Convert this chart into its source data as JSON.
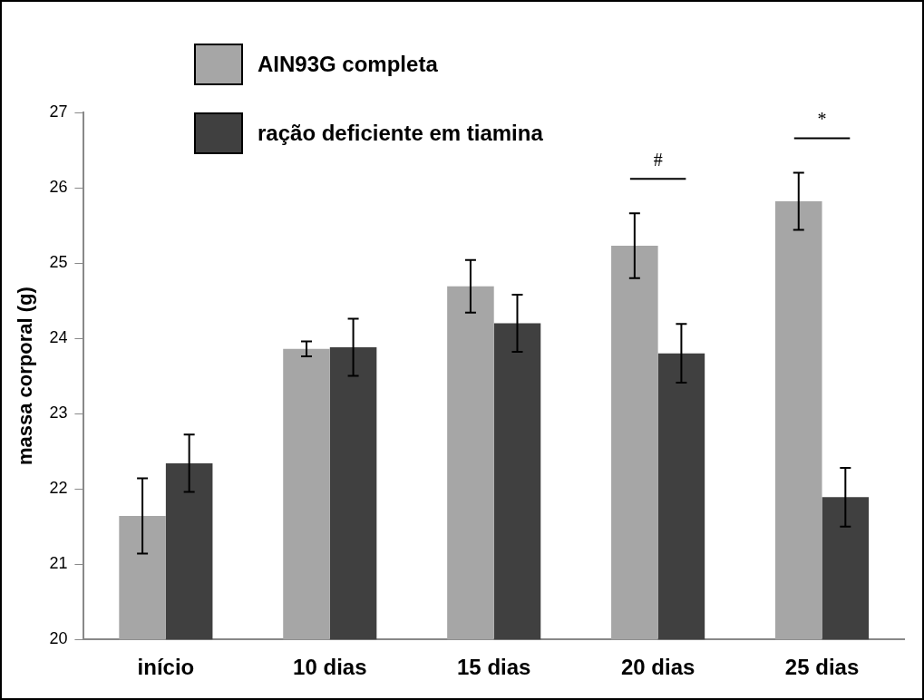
{
  "chart_data": {
    "type": "bar",
    "ylabel": "massa corporal (g)",
    "categories": [
      "início",
      "10 dias",
      "15 dias",
      "20 dias",
      "25 dias"
    ],
    "series": [
      {
        "name": "AIN93G completa",
        "color": "#a6a6a6",
        "values": [
          21.64,
          23.86,
          24.69,
          25.23,
          25.82
        ],
        "errors": [
          0.5,
          0.1,
          0.35,
          0.43,
          0.38
        ]
      },
      {
        "name": "ração deficiente em tiamina",
        "color": "#404040",
        "values": [
          22.34,
          23.88,
          24.2,
          23.8,
          21.89
        ],
        "errors": [
          0.38,
          0.38,
          0.38,
          0.39,
          0.39
        ]
      }
    ],
    "annotations": [
      "#",
      "*"
    ],
    "ylim": [
      20,
      27
    ],
    "yticks": [
      20,
      21,
      22,
      23,
      24,
      25,
      26,
      27
    ],
    "grid": false,
    "legend": "top left"
  }
}
